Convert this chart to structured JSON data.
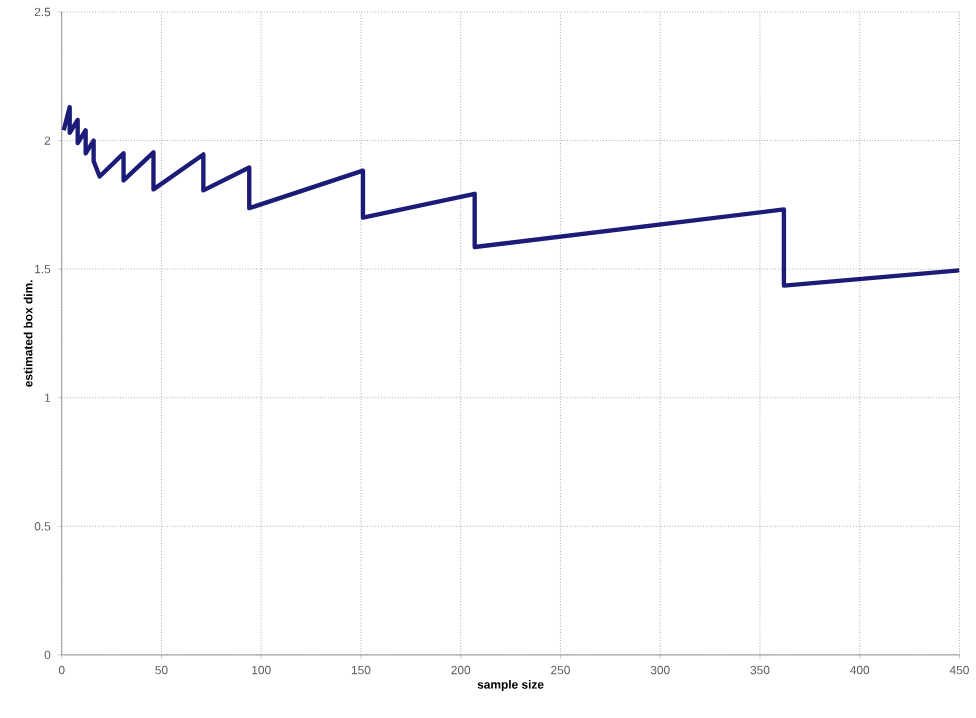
{
  "chart_data": {
    "type": "line",
    "xlabel": "sample size",
    "ylabel": "estimated box dim.",
    "x": [
      1,
      4,
      4,
      8,
      8,
      12,
      12,
      16,
      16,
      19,
      31,
      31,
      46,
      46,
      71,
      71,
      94,
      94,
      151,
      151,
      207,
      207,
      362,
      362,
      450
    ],
    "series": [
      {
        "color": "#1c1c78",
        "values": [
          2.04,
          2.13,
          2.03,
          2.08,
          1.99,
          2.04,
          1.95,
          2.0,
          1.92,
          1.86,
          1.95,
          1.845,
          1.954,
          1.81,
          1.946,
          1.806,
          1.895,
          1.737,
          1.883,
          1.7,
          1.793,
          1.586,
          1.732,
          1.436,
          1.495
        ]
      }
    ],
    "xlim": [
      0,
      450
    ],
    "ylim": [
      0,
      2.5
    ],
    "xticks": [
      0,
      50,
      100,
      150,
      200,
      250,
      300,
      350,
      400,
      450
    ],
    "yticks": [
      0,
      0.5,
      1,
      1.5,
      2,
      2.5
    ],
    "grid": true,
    "marker": "none",
    "line_style": "solid"
  }
}
